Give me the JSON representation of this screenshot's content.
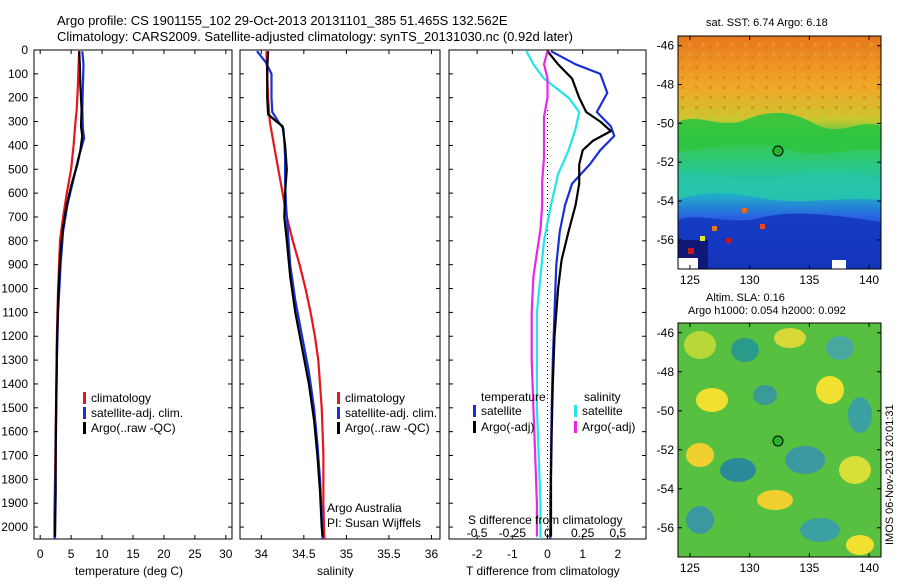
{
  "header": {
    "line1": "Argo profile: CS 1901155_102 29-Oct-2013 20131101_385 51.465S 132.562E",
    "line2": "Climatology: CARS2009. Satellite-adjusted climatology: synTS_20131030.nc (0.92d later)"
  },
  "colors": {
    "climatology": "#e8141e",
    "satellite": "#1a2fd6",
    "argo": "#000000",
    "sat_sal": "#22e6e6",
    "argo_sal": "#e828e8"
  },
  "chart_data": [
    {
      "type": "line",
      "panel": "temperature",
      "xlabel": "temperature (deg C)",
      "xlim": [
        -1,
        31
      ],
      "xticks": [
        0,
        5,
        10,
        15,
        20,
        25,
        30
      ],
      "ylim": [
        2050,
        0
      ],
      "yticks": [
        0,
        100,
        200,
        300,
        400,
        500,
        600,
        700,
        800,
        900,
        1000,
        1100,
        1200,
        1300,
        1400,
        1500,
        1600,
        1700,
        1800,
        1900,
        2000
      ],
      "legend": [
        "climatology",
        "satellite-adj. clim.",
        "Argo(..raw -QC)"
      ],
      "series": [
        {
          "name": "climatology",
          "color": "#e8141e",
          "points": [
            [
              6.3,
              5
            ],
            [
              6.2,
              60
            ],
            [
              6.1,
              150
            ],
            [
              5.9,
              250
            ],
            [
              5.7,
              300
            ],
            [
              5.4,
              400
            ],
            [
              5.0,
              500
            ],
            [
              4.3,
              600
            ],
            [
              3.7,
              700
            ],
            [
              3.2,
              800
            ],
            [
              2.9,
              1000
            ],
            [
              2.7,
              1200
            ],
            [
              2.6,
              1400
            ],
            [
              2.5,
              1600
            ],
            [
              2.4,
              1800
            ],
            [
              2.3,
              1950
            ],
            [
              2.3,
              2050
            ]
          ]
        },
        {
          "name": "satellite-adj. clim.",
          "color": "#1a2fd6",
          "points": [
            [
              6.8,
              5
            ],
            [
              7.0,
              60
            ],
            [
              6.9,
              150
            ],
            [
              6.8,
              250
            ],
            [
              6.9,
              330
            ],
            [
              7.1,
              370
            ],
            [
              6.2,
              450
            ],
            [
              5.3,
              550
            ],
            [
              4.4,
              650
            ],
            [
              3.7,
              760
            ],
            [
              3.3,
              900
            ],
            [
              2.9,
              1100
            ],
            [
              2.7,
              1300
            ],
            [
              2.6,
              1500
            ],
            [
              2.5,
              1700
            ],
            [
              2.4,
              1900
            ],
            [
              2.4,
              2050
            ]
          ]
        },
        {
          "name": "Argo(..raw -QC)",
          "color": "#000000",
          "points": [
            [
              6.3,
              5
            ],
            [
              6.4,
              60
            ],
            [
              6.5,
              150
            ],
            [
              6.7,
              250
            ],
            [
              6.6,
              320
            ],
            [
              6.8,
              360
            ],
            [
              6.5,
              420
            ],
            [
              6.0,
              480
            ],
            [
              5.0,
              570
            ],
            [
              4.2,
              660
            ],
            [
              3.6,
              760
            ],
            [
              3.2,
              880
            ],
            [
              2.9,
              1050
            ],
            [
              2.7,
              1250
            ],
            [
              2.6,
              1450
            ],
            [
              2.5,
              1650
            ],
            [
              2.5,
              1850
            ],
            [
              2.4,
              2040
            ]
          ]
        }
      ]
    },
    {
      "type": "line",
      "panel": "salinity",
      "xlabel": "salinity",
      "xlim": [
        33.75,
        36.1
      ],
      "xticks": [
        34,
        34.5,
        35,
        35.5,
        36
      ],
      "ylim": [
        2050,
        0
      ],
      "legend": [
        "climatology",
        "satellite-adj. clim.",
        "Argo(..raw -QC)"
      ],
      "annotation": [
        "Argo Australia",
        "PI: Susan Wijffels"
      ],
      "series": [
        {
          "name": "climatology",
          "color": "#e8141e",
          "points": [
            [
              34.06,
              5
            ],
            [
              34.07,
              100
            ],
            [
              34.08,
              200
            ],
            [
              34.1,
              300
            ],
            [
              34.15,
              400
            ],
            [
              34.2,
              500
            ],
            [
              34.25,
              600
            ],
            [
              34.3,
              700
            ],
            [
              34.37,
              800
            ],
            [
              34.45,
              900
            ],
            [
              34.52,
              1000
            ],
            [
              34.58,
              1100
            ],
            [
              34.63,
              1200
            ],
            [
              34.67,
              1300
            ],
            [
              34.69,
              1400
            ],
            [
              34.71,
              1500
            ],
            [
              34.72,
              1600
            ],
            [
              34.73,
              1700
            ],
            [
              34.73,
              1800
            ],
            [
              34.73,
              1900
            ],
            [
              34.74,
              2050
            ]
          ]
        },
        {
          "name": "satellite-adj. clim.",
          "color": "#1a2fd6",
          "points": [
            [
              33.95,
              5
            ],
            [
              34.05,
              50
            ],
            [
              34.12,
              100
            ],
            [
              34.12,
              200
            ],
            [
              34.13,
              260
            ],
            [
              34.2,
              300
            ],
            [
              34.26,
              330
            ],
            [
              34.27,
              380
            ],
            [
              34.28,
              450
            ],
            [
              34.28,
              550
            ],
            [
              34.29,
              650
            ],
            [
              34.31,
              750
            ],
            [
              34.34,
              900
            ],
            [
              34.4,
              1050
            ],
            [
              34.48,
              1200
            ],
            [
              34.56,
              1350
            ],
            [
              34.62,
              1500
            ],
            [
              34.66,
              1650
            ],
            [
              34.69,
              1800
            ],
            [
              34.71,
              1950
            ],
            [
              34.72,
              2050
            ]
          ]
        },
        {
          "name": "Argo(..raw -QC)",
          "color": "#000000",
          "points": [
            [
              34.08,
              5
            ],
            [
              34.07,
              80
            ],
            [
              34.07,
              200
            ],
            [
              34.08,
              270
            ],
            [
              34.18,
              300
            ],
            [
              34.25,
              320
            ],
            [
              34.28,
              400
            ],
            [
              34.3,
              500
            ],
            [
              34.28,
              600
            ],
            [
              34.27,
              700
            ],
            [
              34.3,
              800
            ],
            [
              34.34,
              950
            ],
            [
              34.4,
              1100
            ],
            [
              34.48,
              1250
            ],
            [
              34.56,
              1400
            ],
            [
              34.62,
              1550
            ],
            [
              34.66,
              1700
            ],
            [
              34.69,
              1850
            ],
            [
              34.71,
              2000
            ],
            [
              34.72,
              2040
            ]
          ]
        }
      ]
    },
    {
      "type": "line",
      "panel": "difference",
      "xlabel": "T difference from climatology",
      "xlabel_top": "S difference from climatology",
      "xlim": [
        -2.8,
        2.8
      ],
      "xticks": [
        -2,
        -1,
        0,
        1,
        2
      ],
      "xticks_s": [
        "-0.5",
        "-0.25",
        "0",
        "0.25",
        "0.5"
      ],
      "ylim": [
        2050,
        0
      ],
      "legend_left_title": "temperature",
      "legend_right_title": "salinity",
      "legend_left": [
        "satellite",
        "Argo(-adj)"
      ],
      "legend_right": [
        "satellite",
        "Argo(-adj)"
      ],
      "series": [
        {
          "name": "temperature satellite",
          "color": "#1a2fd6",
          "points": [
            [
              0.1,
              5
            ],
            [
              0.8,
              60
            ],
            [
              1.5,
              100
            ],
            [
              1.7,
              180
            ],
            [
              1.4,
              260
            ],
            [
              1.8,
              320
            ],
            [
              1.9,
              360
            ],
            [
              1.5,
              420
            ],
            [
              1.2,
              480
            ],
            [
              0.7,
              560
            ],
            [
              0.5,
              650
            ],
            [
              0.35,
              760
            ],
            [
              0.25,
              900
            ],
            [
              0.2,
              1100
            ],
            [
              0.15,
              1300
            ],
            [
              0.12,
              1500
            ],
            [
              0.1,
              1700
            ],
            [
              0.08,
              1900
            ],
            [
              0.08,
              2050
            ]
          ]
        },
        {
          "name": "temperature Argo(-adj)",
          "color": "#000000",
          "points": [
            [
              0,
              5
            ],
            [
              0.3,
              60
            ],
            [
              0.7,
              120
            ],
            [
              0.9,
              200
            ],
            [
              1.1,
              260
            ],
            [
              1.5,
              300
            ],
            [
              1.8,
              340
            ],
            [
              1.3,
              380
            ],
            [
              1.0,
              420
            ],
            [
              0.9,
              480
            ],
            [
              0.9,
              560
            ],
            [
              0.8,
              650
            ],
            [
              0.6,
              760
            ],
            [
              0.4,
              880
            ],
            [
              0.3,
              1000
            ],
            [
              0.2,
              1200
            ],
            [
              0.15,
              1400
            ],
            [
              0.12,
              1600
            ],
            [
              0.1,
              1800
            ],
            [
              0.1,
              2040
            ]
          ]
        },
        {
          "name": "salinity satellite",
          "color": "#22e6e6",
          "points": [
            [
              -0.6,
              5
            ],
            [
              -0.4,
              60
            ],
            [
              -0.1,
              120
            ],
            [
              0.6,
              200
            ],
            [
              0.9,
              260
            ],
            [
              0.8,
              330
            ],
            [
              0.6,
              420
            ],
            [
              0.3,
              520
            ],
            [
              0.1,
              650
            ],
            [
              -0.1,
              800
            ],
            [
              -0.2,
              950
            ],
            [
              -0.3,
              1100
            ],
            [
              -0.3,
              1300
            ],
            [
              -0.3,
              1500
            ],
            [
              -0.25,
              1700
            ],
            [
              -0.2,
              1900
            ],
            [
              -0.2,
              2050
            ]
          ]
        },
        {
          "name": "salinity Argo(-adj)",
          "color": "#e828e8",
          "points": [
            [
              0,
              5
            ],
            [
              -0.1,
              60
            ],
            [
              0,
              120
            ],
            [
              0,
              200
            ],
            [
              -0.1,
              280
            ],
            [
              -0.1,
              360
            ],
            [
              -0.1,
              450
            ],
            [
              -0.15,
              550
            ],
            [
              -0.15,
              650
            ],
            [
              -0.2,
              750
            ],
            [
              -0.3,
              850
            ],
            [
              -0.4,
              950
            ],
            [
              -0.45,
              1100
            ],
            [
              -0.45,
              1300
            ],
            [
              -0.4,
              1500
            ],
            [
              -0.35,
              1700
            ],
            [
              -0.3,
              1900
            ],
            [
              -0.3,
              2040
            ]
          ]
        }
      ]
    }
  ],
  "maps": {
    "top": {
      "title": "sat. SST: 6.74 Argo: 6.18",
      "ylabels": [
        "-46",
        "-48",
        "-50",
        "-52",
        "-54",
        "-56"
      ],
      "xlabels": [
        "125",
        "130",
        "135",
        "140"
      ]
    },
    "bottom": {
      "title1": "Altim. SLA: 0.16",
      "title2": "Argo h1000: 0.054 h2000: 0.092",
      "ylabels": [
        "-46",
        "-48",
        "-50",
        "-52",
        "-54",
        "-56"
      ],
      "xlabels": [
        "125",
        "130",
        "135",
        "140"
      ]
    },
    "float_marker": {
      "lon": 132.562,
      "lat": -51.465
    },
    "credit": "IMOS 06-Nov-2013 20:01:31"
  }
}
